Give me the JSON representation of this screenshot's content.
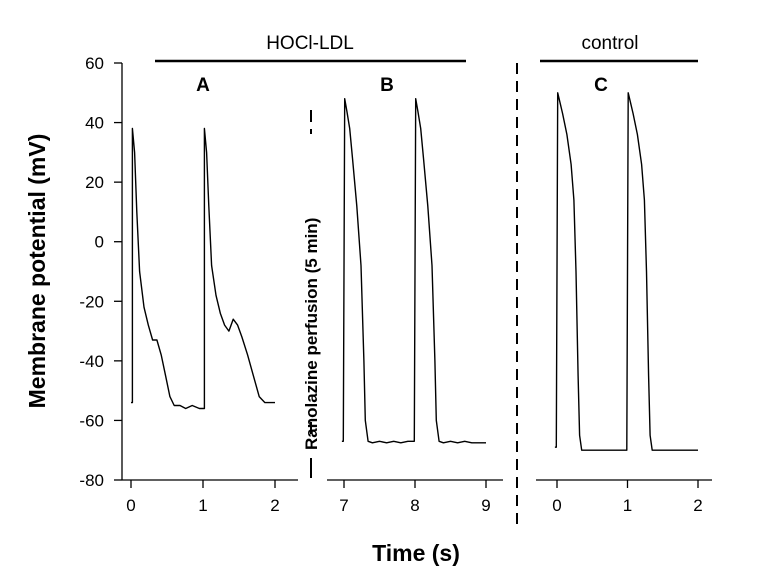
{
  "chart_data": {
    "type": "line",
    "ylabel": "Membrane potential (mV)",
    "xlabel": "Time (s)",
    "ylim": [
      -80,
      60
    ],
    "yticks": [
      "60",
      "40",
      "20",
      "0",
      "-20",
      "-40",
      "-60",
      "-80"
    ],
    "grid": false,
    "legend": "none",
    "group_labels": {
      "hocl": "HOCl-LDL",
      "control": "control"
    },
    "intervention_label": "Ranolazine perfusion (5 min)",
    "panels": [
      {
        "label": "A",
        "xticks": [
          "0",
          "1",
          "2"
        ],
        "xlim": [
          -0.1,
          2.1
        ],
        "x": [
          0.0,
          0.02,
          0.02,
          0.05,
          0.08,
          0.12,
          0.18,
          0.24,
          0.3,
          0.36,
          0.42,
          0.48,
          0.54,
          0.6,
          0.68,
          0.76,
          0.85,
          0.95,
          1.0,
          1.02,
          1.02,
          1.05,
          1.08,
          1.12,
          1.18,
          1.24,
          1.3,
          1.36,
          1.42,
          1.48,
          1.54,
          1.62,
          1.7,
          1.78,
          1.86,
          1.95,
          2.0
        ],
        "y": [
          -54,
          -54,
          38,
          30,
          10,
          -10,
          -22,
          -28,
          -33,
          -33,
          -38,
          -45,
          -52,
          -55,
          -55,
          -56,
          -55,
          -56,
          -56,
          -56,
          38,
          30,
          12,
          -8,
          -18,
          -24,
          -28,
          -30,
          -26,
          -28,
          -32,
          -38,
          -45,
          -52,
          -54,
          -54,
          -54
        ]
      },
      {
        "label": "B",
        "xticks": [
          "7",
          "8",
          "9"
        ],
        "xlim": [
          6.9,
          9.1
        ],
        "x": [
          6.97,
          6.99,
          7.01,
          7.04,
          7.08,
          7.12,
          7.18,
          7.24,
          7.28,
          7.3,
          7.34,
          7.4,
          7.5,
          7.6,
          7.7,
          7.8,
          7.9,
          7.97,
          7.99,
          8.01,
          8.04,
          8.08,
          8.12,
          8.18,
          8.24,
          8.28,
          8.3,
          8.34,
          8.4,
          8.5,
          8.6,
          8.7,
          8.8,
          8.9,
          9.0
        ],
        "y": [
          -67,
          -67,
          48,
          44,
          38,
          28,
          12,
          -8,
          -40,
          -60,
          -67,
          -67.5,
          -67,
          -67.5,
          -67,
          -67.5,
          -67,
          -67,
          -67,
          48,
          44,
          38,
          28,
          12,
          -8,
          -40,
          -60,
          -67,
          -67.5,
          -67,
          -67.5,
          -67,
          -67.5,
          -67.5,
          -67.5
        ]
      },
      {
        "label": "C",
        "xticks": [
          "0",
          "1",
          "2"
        ],
        "xlim": [
          -0.1,
          2.1
        ],
        "x": [
          -0.03,
          -0.01,
          0.01,
          0.04,
          0.08,
          0.14,
          0.2,
          0.24,
          0.27,
          0.3,
          0.32,
          0.35,
          0.4,
          0.55,
          0.7,
          0.85,
          0.97,
          0.99,
          1.01,
          1.04,
          1.08,
          1.14,
          1.2,
          1.24,
          1.27,
          1.3,
          1.32,
          1.35,
          1.4,
          1.55,
          1.7,
          1.85,
          2.0
        ],
        "y": [
          -69,
          -69,
          50,
          47,
          43,
          36,
          26,
          14,
          -10,
          -45,
          -65,
          -70,
          -70,
          -70,
          -70,
          -70,
          -70,
          -70,
          50,
          47,
          43,
          36,
          26,
          14,
          -10,
          -45,
          -65,
          -70,
          -70,
          -70,
          -70,
          -70,
          -70
        ]
      }
    ]
  }
}
